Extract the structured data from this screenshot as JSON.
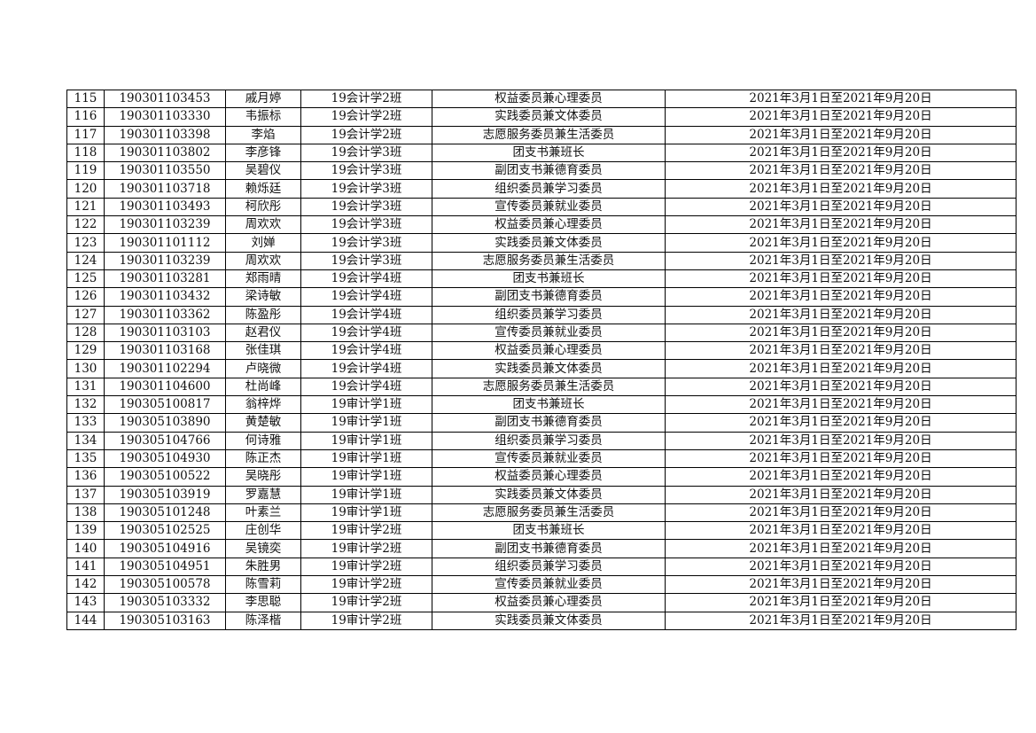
{
  "table": {
    "rows": [
      [
        "115",
        "190301103453",
        "戚月婷",
        "19会计学2班",
        "权益委员兼心理委员",
        "2021年3月1日至2021年9月20日"
      ],
      [
        "116",
        "190301103330",
        "韦振标",
        "19会计学2班",
        "实践委员兼文体委员",
        "2021年3月1日至2021年9月20日"
      ],
      [
        "117",
        "190301103398",
        "李焰",
        "19会计学2班",
        "志愿服务委员兼生活委员",
        "2021年3月1日至2021年9月20日"
      ],
      [
        "118",
        "190301103802",
        "李彦锋",
        "19会计学3班",
        "团支书兼班长",
        "2021年3月1日至2021年9月20日"
      ],
      [
        "119",
        "190301103550",
        "吴碧仪",
        "19会计学3班",
        "副团支书兼德育委员",
        "2021年3月1日至2021年9月20日"
      ],
      [
        "120",
        "190301103718",
        "赖烁廷",
        "19会计学3班",
        "组织委员兼学习委员",
        "2021年3月1日至2021年9月20日"
      ],
      [
        "121",
        "190301103493",
        "柯欣彤",
        "19会计学3班",
        "宣传委员兼就业委员",
        "2021年3月1日至2021年9月20日"
      ],
      [
        "122",
        "190301103239",
        "周欢欢",
        "19会计学3班",
        "权益委员兼心理委员",
        "2021年3月1日至2021年9月20日"
      ],
      [
        "123",
        "190301101112",
        "刘婵",
        "19会计学3班",
        "实践委员兼文体委员",
        "2021年3月1日至2021年9月20日"
      ],
      [
        "124",
        "190301103239",
        "周欢欢",
        "19会计学3班",
        "志愿服务委员兼生活委员",
        "2021年3月1日至2021年9月20日"
      ],
      [
        "125",
        "190301103281",
        "郑雨晴",
        "19会计学4班",
        "团支书兼班长",
        "2021年3月1日至2021年9月20日"
      ],
      [
        "126",
        "190301103432",
        "梁诗敏",
        "19会计学4班",
        "副团支书兼德育委员",
        "2021年3月1日至2021年9月20日"
      ],
      [
        "127",
        "190301103362",
        "陈盈彤",
        "19会计学4班",
        "组织委员兼学习委员",
        "2021年3月1日至2021年9月20日"
      ],
      [
        "128",
        "190301103103",
        "赵君仪",
        "19会计学4班",
        "宣传委员兼就业委员",
        "2021年3月1日至2021年9月20日"
      ],
      [
        "129",
        "190301103168",
        "张佳琪",
        "19会计学4班",
        "权益委员兼心理委员",
        "2021年3月1日至2021年9月20日"
      ],
      [
        "130",
        "190301102294",
        "卢晓微",
        "19会计学4班",
        "实践委员兼文体委员",
        "2021年3月1日至2021年9月20日"
      ],
      [
        "131",
        "190301104600",
        "杜尚峰",
        "19会计学4班",
        "志愿服务委员兼生活委员",
        "2021年3月1日至2021年9月20日"
      ],
      [
        "132",
        "190305100817",
        "翁梓烨",
        "19审计学1班",
        "团支书兼班长",
        "2021年3月1日至2021年9月20日"
      ],
      [
        "133",
        "190305103890",
        "黄楚敏",
        "19审计学1班",
        "副团支书兼德育委员",
        "2021年3月1日至2021年9月20日"
      ],
      [
        "134",
        "190305104766",
        "何诗雅",
        "19审计学1班",
        "组织委员兼学习委员",
        "2021年3月1日至2021年9月20日"
      ],
      [
        "135",
        "190305104930",
        "陈正杰",
        "19审计学1班",
        "宣传委员兼就业委员",
        "2021年3月1日至2021年9月20日"
      ],
      [
        "136",
        "190305100522",
        "吴晓彤",
        "19审计学1班",
        "权益委员兼心理委员",
        "2021年3月1日至2021年9月20日"
      ],
      [
        "137",
        "190305103919",
        "罗嘉慧",
        "19审计学1班",
        "实践委员兼文体委员",
        "2021年3月1日至2021年9月20日"
      ],
      [
        "138",
        "190305101248",
        "叶素兰",
        "19审计学1班",
        "志愿服务委员兼生活委员",
        "2021年3月1日至2021年9月20日"
      ],
      [
        "139",
        "190305102525",
        "庄创华",
        "19审计学2班",
        "团支书兼班长",
        "2021年3月1日至2021年9月20日"
      ],
      [
        "140",
        "190305104916",
        "吴镜奕",
        "19审计学2班",
        "副团支书兼德育委员",
        "2021年3月1日至2021年9月20日"
      ],
      [
        "141",
        "190305104951",
        "朱胜男",
        "19审计学2班",
        "组织委员兼学习委员",
        "2021年3月1日至2021年9月20日"
      ],
      [
        "142",
        "190305100578",
        "陈雪莉",
        "19审计学2班",
        "宣传委员兼就业委员",
        "2021年3月1日至2021年9月20日"
      ],
      [
        "143",
        "190305103332",
        "李思聪",
        "19审计学2班",
        "权益委员兼心理委员",
        "2021年3月1日至2021年9月20日"
      ],
      [
        "144",
        "190305103163",
        "陈泽楷",
        "19审计学2班",
        "实践委员兼文体委员",
        "2021年3月1日至2021年9月20日"
      ]
    ]
  }
}
